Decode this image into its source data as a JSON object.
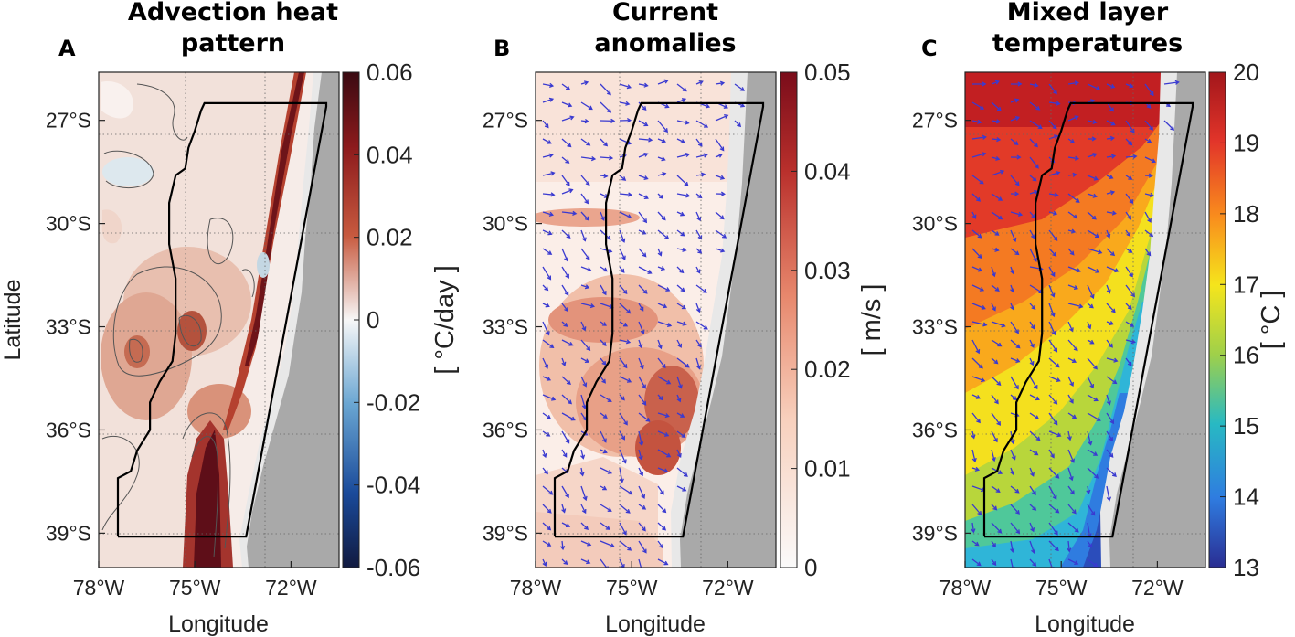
{
  "figure": {
    "xlabel": "Longitude",
    "ylabel": "Latitude",
    "lon_ticks": [
      "78°W",
      "75°W",
      "72°W"
    ],
    "lat_ticks": [
      "27°S",
      "30°S",
      "33°S",
      "36°S",
      "39°S"
    ],
    "colors": {
      "land": "#a9a9a9",
      "coast_strip": "#e8e8e8",
      "vectors": "#3a3ad0",
      "boundary": "#000000"
    }
  },
  "chart_data": [
    {
      "type": "heatmap",
      "panel_label": "A",
      "title": [
        "Advection heat",
        "pattern"
      ],
      "xlabel": "Longitude",
      "ylabel": "Latitude",
      "xlim": [
        -78,
        -70.5
      ],
      "ylim": [
        -40,
        -25.6
      ],
      "xticks": [
        -78,
        -75,
        -72
      ],
      "yticks": [
        -27,
        -30,
        -33,
        -36,
        -39
      ],
      "colorbar": {
        "label": "[ °C/day ]",
        "range": [
          -0.06,
          0.06
        ],
        "ticks": [
          "0.06",
          "0.04",
          "0.02",
          "0",
          "-0.02",
          "-0.04",
          "-0.06"
        ],
        "colormap": "diverging blue-white-red"
      },
      "features": "contour lines; warm anomaly max near coast 74.5°W 37–39°S; secondary maximum near 75°W 33°S; small cool patches near 77°W 27.5°S and 72.5°W 31°S"
    },
    {
      "type": "heatmap",
      "panel_label": "B",
      "title": [
        "Current",
        "anomalies"
      ],
      "xlabel": "Longitude",
      "ylabel": "",
      "xlim": [
        -78,
        -70.5
      ],
      "ylim": [
        -40,
        -25.6
      ],
      "xticks": [
        -78,
        -75,
        -72
      ],
      "yticks": [
        -27,
        -30,
        -33,
        -36,
        -39
      ],
      "colorbar": {
        "label": "[ m/s ]",
        "range": [
          0,
          0.05
        ],
        "ticks": [
          "0.05",
          "0.04",
          "0.03",
          "0.02",
          "0.01",
          "0"
        ],
        "colormap": "white-red"
      },
      "overlay": "current anomaly vectors (arrows)",
      "features": "strongest currents ~0.03 m/s around 73.5–74°W, 35–37°S; band near 29.5°S"
    },
    {
      "type": "heatmap",
      "panel_label": "C",
      "title": [
        "Mixed layer",
        "temperatures"
      ],
      "xlabel": "Longitude",
      "ylabel": "",
      "xlim": [
        -78,
        -70.5
      ],
      "ylim": [
        -40,
        -25.6
      ],
      "xticks": [
        -78,
        -75,
        -72
      ],
      "yticks": [
        -27,
        -30,
        -33,
        -36,
        -39
      ],
      "colorbar": {
        "label": "[ °C ]",
        "range": [
          13,
          20
        ],
        "ticks": [
          "20",
          "19",
          "18",
          "17",
          "16",
          "15",
          "14",
          "13"
        ],
        "colormap": "jet"
      },
      "overlay": "current vectors (arrows)",
      "features": "warm ~20°C offshore north; coastal upwelling cold ~14°C south of 35°S"
    }
  ],
  "boundary_polygon_lonlat": [
    [
      -77.4,
      -39.1
    ],
    [
      -77.4,
      -37.4
    ],
    [
      -77.0,
      -37.2
    ],
    [
      -76.8,
      -36.6
    ],
    [
      -76.4,
      -36.0
    ],
    [
      -76.4,
      -35.2
    ],
    [
      -76.1,
      -34.6
    ],
    [
      -75.7,
      -34.0
    ],
    [
      -75.6,
      -33.2
    ],
    [
      -75.6,
      -31.6
    ],
    [
      -75.8,
      -30.6
    ],
    [
      -75.8,
      -29.4
    ],
    [
      -75.6,
      -28.6
    ],
    [
      -75.3,
      -28.4
    ],
    [
      -75.2,
      -27.8
    ],
    [
      -75.0,
      -27.3
    ],
    [
      -74.8,
      -26.7
    ],
    [
      -74.7,
      -26.5
    ],
    [
      -70.9,
      -26.5
    ],
    [
      -70.9,
      -26.6
    ],
    [
      -73.4,
      -39.1
    ],
    [
      -77.4,
      -39.1
    ]
  ]
}
